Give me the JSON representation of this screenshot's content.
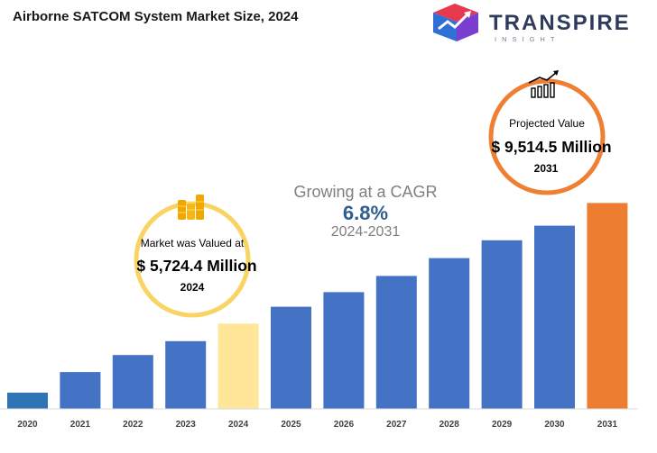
{
  "title": "Airborne SATCOM System Market Size, 2024",
  "logo": {
    "name": "TRANSPIRE",
    "sub": "INSIGHT",
    "icon": "transpire-logo-icon"
  },
  "cagr": {
    "label": "Growing at a CAGR",
    "value": "6.8%",
    "period": "2024-2031"
  },
  "start_callout": {
    "label": "Market was Valued at",
    "value": "$ 5,724.4 Million",
    "year": "2024",
    "icon": "coins-icon",
    "ring_color": "#f9d463"
  },
  "end_callout": {
    "label": "Projected Value",
    "value": "$ 9,514.5 Million",
    "year": "2031",
    "icon": "growth-bars-icon",
    "ring_color": "#ee7f33"
  },
  "colors": {
    "default_bar": "#4472c4",
    "start_bar": "#2e75b6",
    "base_year_bar": "#ffe699",
    "end_bar": "#ed7d31"
  },
  "chart_data": {
    "type": "bar",
    "categories": [
      "2020",
      "2021",
      "2022",
      "2023",
      "2024",
      "2025",
      "2026",
      "2027",
      "2028",
      "2029",
      "2030",
      "2031"
    ],
    "values": [
      1.0,
      2.27,
      3.32,
      4.18,
      5.26,
      6.3,
      7.2,
      8.2,
      9.3,
      10.4,
      11.3,
      12.7
    ],
    "bar_colors": [
      "#2e75b6",
      "#4472c4",
      "#4472c4",
      "#4472c4",
      "#ffe699",
      "#4472c4",
      "#4472c4",
      "#4472c4",
      "#4472c4",
      "#4472c4",
      "#4472c4",
      "#ed7d31"
    ],
    "ylim": [
      0,
      14
    ],
    "xlabel": "",
    "ylabel": "",
    "grid": false,
    "legend": "none"
  }
}
